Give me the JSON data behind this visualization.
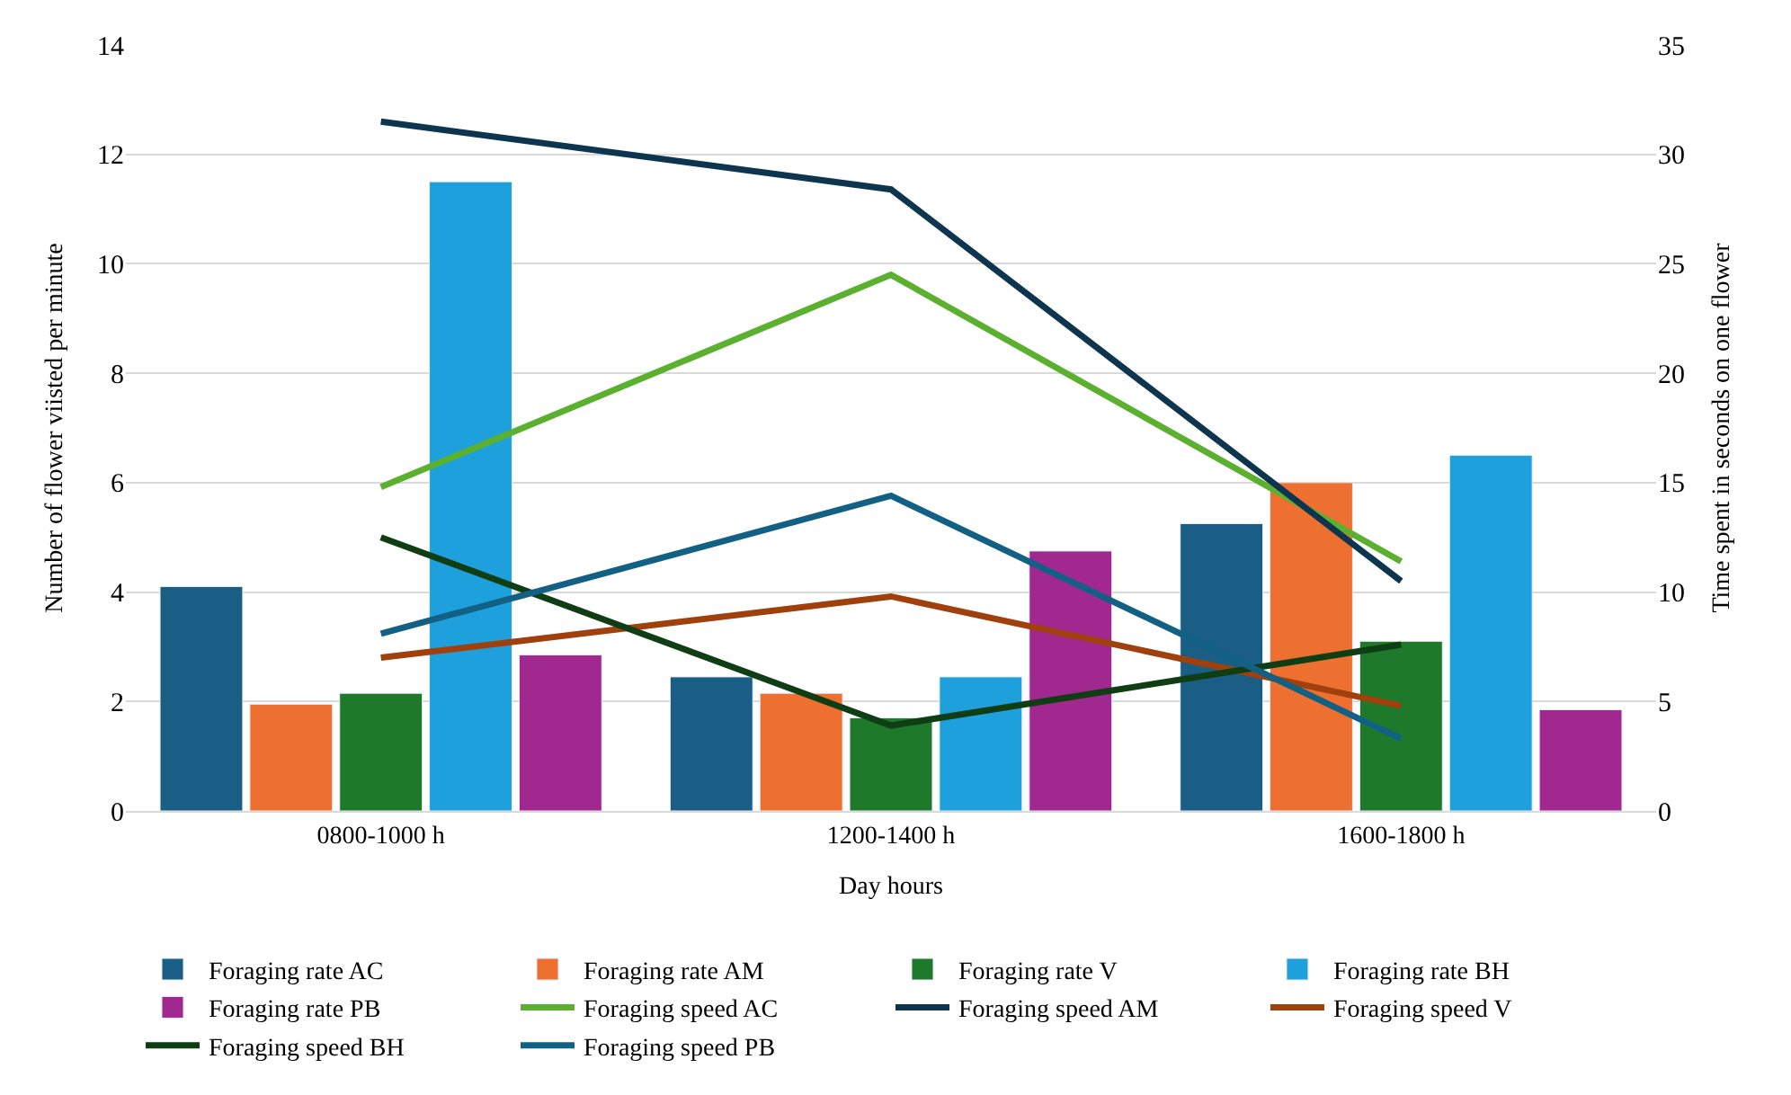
{
  "chart_data": {
    "type": "bar",
    "xlabel": "Day hours",
    "ylabel": "Number of flower viisted per minute",
    "y2label": "Time spent in seconds on one flower",
    "categories": [
      "0800-1000 h",
      "1200-1400 h",
      "1600-1800 h"
    ],
    "series": [
      {
        "name": "Foraging rate AC",
        "color": "#1b5e85",
        "values": [
          4.1,
          2.45,
          5.25
        ]
      },
      {
        "name": "Foraging rate AM",
        "color": "#ee7030",
        "values": [
          1.95,
          2.15,
          6.0
        ]
      },
      {
        "name": "Foraging rate V",
        "color": "#1e7a2a",
        "values": [
          2.15,
          1.7,
          3.1
        ]
      },
      {
        "name": "Foraging rate BH",
        "color": "#1ea0dc",
        "values": [
          11.5,
          2.45,
          6.5
        ]
      },
      {
        "name": "Foraging rate PB",
        "color": "#a0288f",
        "values": [
          2.85,
          4.75,
          1.85
        ]
      },
      {
        "name": "Foraging speed AC",
        "type": "line",
        "axis": "y2",
        "color": "#5cb030",
        "values": [
          14.8,
          24.5,
          11.4
        ]
      },
      {
        "name": "Foraging speed AM",
        "type": "line",
        "axis": "y2",
        "color": "#0d3550",
        "values": [
          31.5,
          28.4,
          10.5
        ]
      },
      {
        "name": "Foraging speed V",
        "type": "line",
        "axis": "y2",
        "color": "#a0400c",
        "values": [
          7.0,
          9.8,
          4.8
        ]
      },
      {
        "name": "Foraging speed BH",
        "type": "line",
        "axis": "y2",
        "color": "#0f3d14",
        "values": [
          12.5,
          3.9,
          7.6
        ]
      },
      {
        "name": "Foraging speed PB",
        "type": "line",
        "axis": "y2",
        "color": "#136085",
        "values": [
          8.1,
          14.4,
          3.3
        ]
      }
    ],
    "ylim": [
      0,
      14
    ],
    "yticks": [
      0,
      2,
      4,
      6,
      8,
      10,
      12,
      14
    ],
    "y2lim": [
      0,
      35
    ],
    "y2ticks": [
      0,
      5,
      10,
      15,
      20,
      25,
      30,
      35
    ],
    "grid": "y",
    "legend": "bottom",
    "marker": "none",
    "line_style": "solid"
  }
}
